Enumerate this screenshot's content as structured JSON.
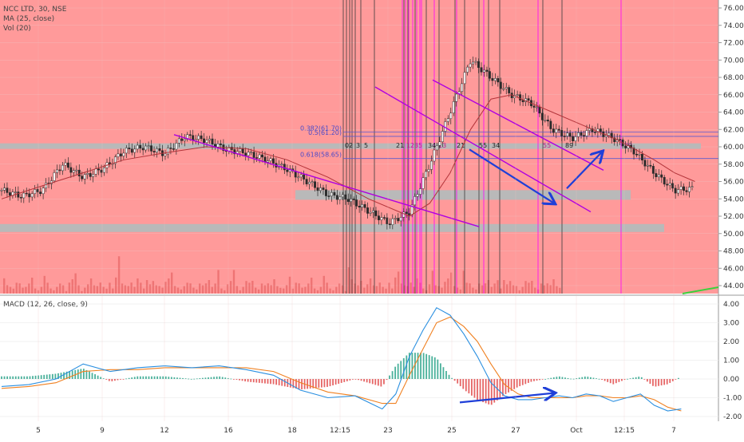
{
  "header": {
    "title": "NCC LTD, 30, NSE",
    "indicator1": "MA (25, close)",
    "indicator2": "Vol (20)"
  },
  "macd_header": {
    "label": "MACD (12, 26, close, 9)"
  },
  "colors": {
    "price_bg": "#ff9a9a",
    "candle": "#2b2b2b",
    "ma_line": "#b3343a",
    "volume_bar": "#e05656",
    "trendline": "#b000e0",
    "cycle_line_dark": "#3a3a3a",
    "cycle_line_pink": "#ff00ff",
    "zone": "#b9b9b9",
    "fib_line": "#5a5ad0",
    "arrow": "#1f3fd8",
    "macd_line": "#2a8fe0",
    "signal_line": "#f08020",
    "hist_positive": "#2aa38a",
    "hist_negative": "#e24a4a"
  },
  "fib_levels": [
    {
      "label": "0.382(61.70)",
      "value": 61.7
    },
    {
      "label": "0.5(61.20)",
      "value": 61.2
    },
    {
      "label": "0.618(58.65)",
      "value": 58.65
    }
  ],
  "cycle_labels": [
    "0",
    "2",
    "3",
    "5",
    "8",
    "21",
    "1",
    "2",
    "3",
    "5",
    "34",
    "13",
    "21",
    "55",
    "34",
    "55",
    "89",
    "89"
  ],
  "chart_data": [
    {
      "type": "line",
      "title": "NCC LTD, 30, NSE",
      "y_axis_ticks": [
        "76.00",
        "74.00",
        "72.00",
        "70.00",
        "68.00",
        "66.00",
        "64.00",
        "62.00",
        "60.00",
        "58.00",
        "56.00",
        "54.00",
        "52.00",
        "50.00",
        "48.00",
        "46.00",
        "44.00"
      ],
      "x_axis_ticks": [
        "5",
        "9",
        "12",
        "16",
        "18",
        "12:15",
        "23",
        "25",
        "27",
        "Oct",
        "12:15",
        "7"
      ],
      "ylim": [
        43,
        77
      ],
      "series": [
        {
          "name": "NCC LTD",
          "x": [
            0,
            3,
            6,
            9,
            12,
            15,
            18,
            21,
            24,
            27,
            30,
            33,
            36,
            39,
            42,
            45,
            48,
            51,
            54,
            57,
            60,
            63,
            66,
            69,
            72,
            75,
            78,
            81,
            84,
            87,
            90,
            93,
            96,
            99,
            102
          ],
          "values": [
            55,
            54.3,
            55,
            58,
            56.5,
            57.5,
            59.5,
            60,
            59.2,
            61.2,
            60.8,
            59.7,
            59.3,
            58.5,
            57.4,
            56,
            54.5,
            54,
            52.6,
            51.2,
            52.5,
            58,
            64,
            70,
            68,
            66,
            65,
            62,
            61,
            62,
            61,
            59.5,
            57,
            55,
            55.2
          ]
        },
        {
          "name": "MA (25, close)",
          "x": [
            0,
            6,
            12,
            18,
            24,
            30,
            36,
            42,
            48,
            54,
            60,
            63,
            66,
            69,
            72,
            75,
            78,
            81,
            84,
            87,
            90,
            93,
            96,
            99,
            102
          ],
          "values": [
            54,
            55.5,
            57,
            58.5,
            59.3,
            60,
            59.8,
            58.5,
            56.5,
            54,
            52,
            53.5,
            57,
            62,
            65.5,
            66,
            65,
            64,
            63,
            62,
            61,
            59.8,
            58.5,
            57,
            56
          ]
        }
      ],
      "volume": [
        2,
        3,
        2,
        1,
        3,
        4,
        2,
        2,
        3,
        5,
        2,
        1,
        2,
        6,
        3,
        2,
        1,
        2,
        3,
        2,
        1,
        4,
        5,
        3,
        2,
        1,
        2,
        3,
        5,
        2,
        3,
        4,
        2,
        1,
        3,
        2,
        6,
        8,
        3,
        2,
        3,
        4,
        2,
        5,
        3,
        2,
        1,
        3,
        4,
        2,
        3,
        2,
        4,
        5,
        7,
        3,
        2,
        1,
        2,
        3,
        4,
        2,
        1,
        3,
        2,
        4,
        5,
        2,
        3,
        4,
        2,
        1,
        3,
        4,
        2,
        3,
        1,
        2,
        4,
        3,
        5,
        2,
        1,
        3,
        2,
        4,
        3,
        5,
        2,
        1
      ]
    },
    {
      "type": "line",
      "title": "MACD (12, 26, close, 9)",
      "y_axis_ticks": [
        "4.00",
        "3.00",
        "2.00",
        "1.00",
        "0.00",
        "-1.00",
        "-2.00"
      ],
      "ylim": [
        -2.4,
        4.3
      ],
      "series": [
        {
          "name": "MACD",
          "x": [
            0,
            4,
            8,
            12,
            16,
            20,
            24,
            28,
            32,
            36,
            40,
            44,
            48,
            52,
            56,
            58,
            60,
            62,
            64,
            66,
            68,
            70,
            72,
            74,
            76,
            78,
            80,
            82,
            84,
            86,
            88,
            90,
            92,
            94,
            96,
            98,
            100
          ],
          "values": [
            -0.4,
            -0.3,
            0,
            0.8,
            0.4,
            0.6,
            0.7,
            0.6,
            0.7,
            0.5,
            0.2,
            -0.6,
            -1.0,
            -0.9,
            -1.6,
            -0.8,
            1.2,
            2.6,
            3.8,
            3.4,
            2.4,
            1.2,
            -0.2,
            -0.9,
            -1.1,
            -1.1,
            -1.0,
            -0.9,
            -1.0,
            -0.8,
            -0.9,
            -1.2,
            -1.0,
            -0.8,
            -1.4,
            -1.7,
            -1.6
          ]
        },
        {
          "name": "Signal",
          "x": [
            0,
            4,
            8,
            12,
            16,
            20,
            24,
            28,
            32,
            36,
            40,
            44,
            48,
            52,
            56,
            58,
            60,
            62,
            64,
            66,
            68,
            70,
            72,
            74,
            76,
            78,
            80,
            82,
            84,
            86,
            88,
            90,
            92,
            94,
            96,
            98,
            100
          ],
          "values": [
            -0.5,
            -0.4,
            -0.2,
            0.4,
            0.5,
            0.5,
            0.6,
            0.6,
            0.6,
            0.6,
            0.4,
            -0.2,
            -0.7,
            -0.9,
            -1.3,
            -1.3,
            0.2,
            1.6,
            3.0,
            3.3,
            2.8,
            2.0,
            0.8,
            -0.3,
            -0.8,
            -1.0,
            -1.0,
            -1.0,
            -1.0,
            -0.9,
            -0.9,
            -1.0,
            -1.0,
            -0.9,
            -1.1,
            -1.5,
            -1.7
          ]
        }
      ]
    }
  ]
}
